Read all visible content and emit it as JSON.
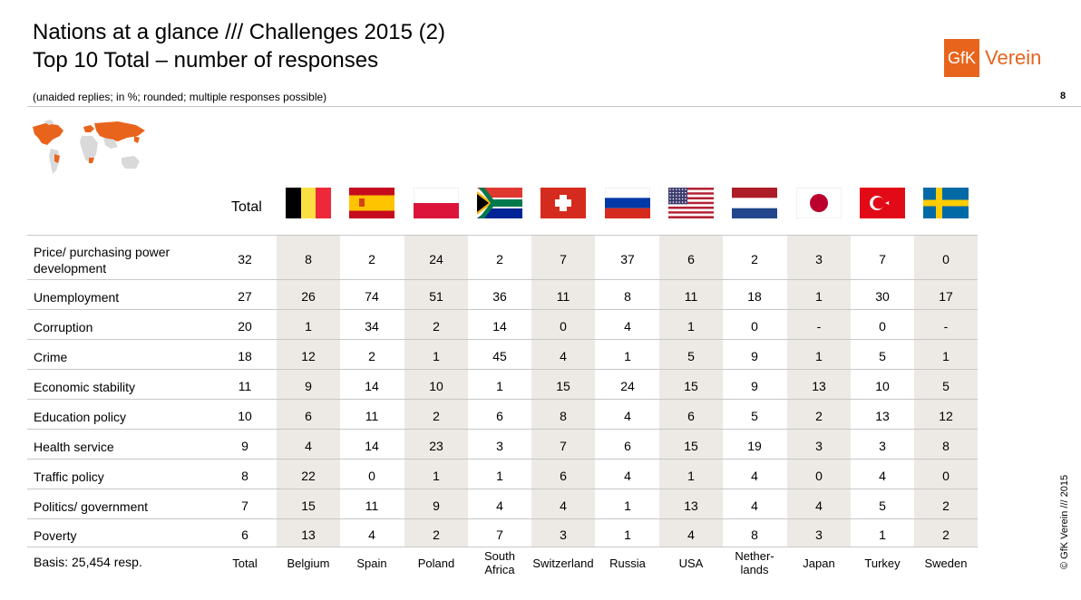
{
  "header": {
    "title_line1": "Nations at a glance /// Challenges 2015 (2)",
    "title_line2": "Top 10 Total – number of responses",
    "subtitle": "(unaided replies; in %; rounded; multiple responses possible)",
    "page_number": "8",
    "logo_box": "GfK",
    "logo_word": "Verein"
  },
  "footer": {
    "copyright": "© GfK Verein /// 2015",
    "basis": "Basis: 25,454 resp."
  },
  "table": {
    "total_header": "Total",
    "columns": [
      {
        "key": "total",
        "label": "Total",
        "flag": "none"
      },
      {
        "key": "belgium",
        "label": "Belgium",
        "flag": "belgium"
      },
      {
        "key": "spain",
        "label": "Spain",
        "flag": "spain"
      },
      {
        "key": "poland",
        "label": "Poland",
        "flag": "poland"
      },
      {
        "key": "south_africa",
        "label": "South Africa",
        "label_lines": [
          "South",
          "Africa"
        ],
        "flag": "south-africa"
      },
      {
        "key": "switzerland",
        "label": "Switzerland",
        "flag": "switzerland"
      },
      {
        "key": "russia",
        "label": "Russia",
        "flag": "russia"
      },
      {
        "key": "usa",
        "label": "USA",
        "flag": "usa"
      },
      {
        "key": "netherlands",
        "label": "Nether-lands",
        "label_lines": [
          "Nether-",
          "lands"
        ],
        "flag": "netherlands"
      },
      {
        "key": "japan",
        "label": "Japan",
        "flag": "japan"
      },
      {
        "key": "turkey",
        "label": "Turkey",
        "flag": "turkey"
      },
      {
        "key": "sweden",
        "label": "Sweden",
        "flag": "sweden"
      }
    ],
    "rows": [
      {
        "label": "Price/ purchasing power development",
        "label_lines": [
          "Price/ purchasing power",
          "development"
        ],
        "values": [
          "32",
          "8",
          "2",
          "24",
          "2",
          "7",
          "37",
          "6",
          "2",
          "3",
          "7",
          "0"
        ]
      },
      {
        "label": "Unemployment",
        "values": [
          "27",
          "26",
          "74",
          "51",
          "36",
          "11",
          "8",
          "11",
          "18",
          "1",
          "30",
          "17"
        ]
      },
      {
        "label": "Corruption",
        "values": [
          "20",
          "1",
          "34",
          "2",
          "14",
          "0",
          "4",
          "1",
          "0",
          "-",
          "0",
          "-"
        ]
      },
      {
        "label": "Crime",
        "values": [
          "18",
          "12",
          "2",
          "1",
          "45",
          "4",
          "1",
          "5",
          "9",
          "1",
          "5",
          "1"
        ]
      },
      {
        "label": "Economic stability",
        "values": [
          "11",
          "9",
          "14",
          "10",
          "1",
          "15",
          "24",
          "15",
          "9",
          "13",
          "10",
          "5"
        ]
      },
      {
        "label": "Education policy",
        "values": [
          "10",
          "6",
          "11",
          "2",
          "6",
          "8",
          "4",
          "6",
          "5",
          "2",
          "13",
          "12"
        ]
      },
      {
        "label": "Health service",
        "values": [
          "9",
          "4",
          "14",
          "23",
          "3",
          "7",
          "6",
          "15",
          "19",
          "3",
          "3",
          "8"
        ]
      },
      {
        "label": "Traffic policy",
        "values": [
          "8",
          "22",
          "0",
          "1",
          "1",
          "6",
          "4",
          "1",
          "4",
          "0",
          "4",
          "0"
        ]
      },
      {
        "label": "Politics/ government",
        "values": [
          "7",
          "15",
          "11",
          "9",
          "4",
          "4",
          "1",
          "13",
          "4",
          "4",
          "5",
          "2"
        ]
      },
      {
        "label": "Poverty",
        "values": [
          "6",
          "13",
          "4",
          "2",
          "7",
          "3",
          "1",
          "4",
          "8",
          "3",
          "1",
          "2"
        ]
      }
    ]
  },
  "colors": {
    "accent": "#e8641c",
    "shade": "#ede9e4",
    "rule": "#c8c8c8"
  }
}
